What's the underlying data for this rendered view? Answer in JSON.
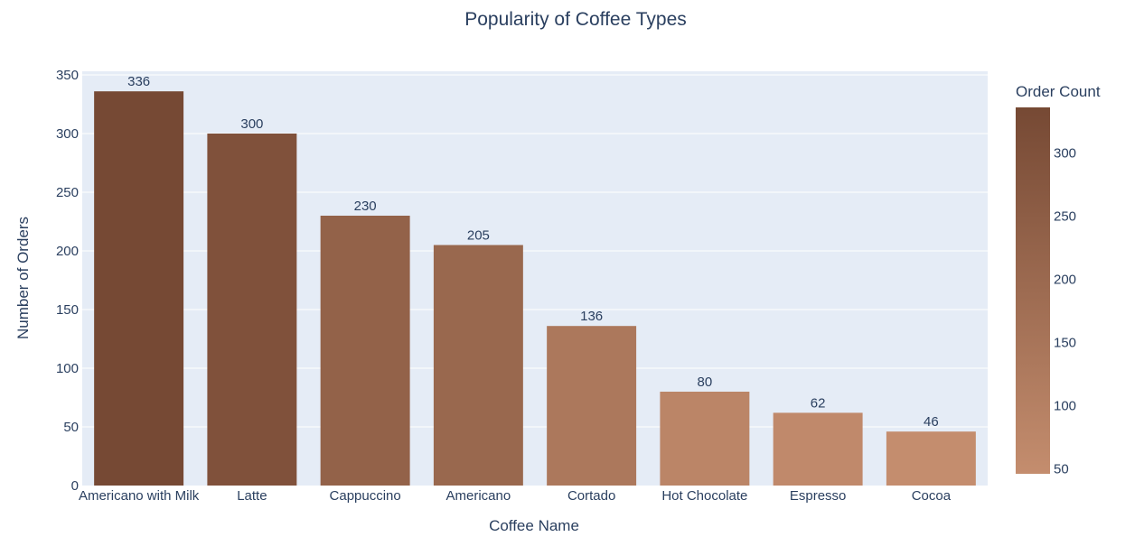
{
  "chart_data": {
    "type": "bar",
    "title": "Popularity of Coffee Types",
    "xlabel": "Coffee Name",
    "ylabel": "Number of Orders",
    "categories": [
      "Americano with Milk",
      "Latte",
      "Cappuccino",
      "Americano",
      "Cortado",
      "Hot Chocolate",
      "Espresso",
      "Cocoa"
    ],
    "values": [
      336,
      300,
      230,
      205,
      136,
      80,
      62,
      46
    ],
    "data_labels": [
      "336",
      "300",
      "230",
      "205",
      "136",
      "80",
      "62",
      "46"
    ],
    "ylim": [
      0,
      350
    ],
    "yticks": [
      0,
      50,
      100,
      150,
      200,
      250,
      300,
      350
    ],
    "ytick_labels": [
      "0",
      "50",
      "100",
      "150",
      "200",
      "250",
      "300",
      "350"
    ],
    "grid": true,
    "colorbar": {
      "title": "Order Count",
      "range": [
        46,
        336
      ],
      "ticks": [
        50,
        100,
        150,
        200,
        250,
        300
      ],
      "tick_labels": [
        "50",
        "100",
        "150",
        "200",
        "250",
        "300"
      ],
      "color_low": "#c48d6e",
      "color_high": "#764934"
    },
    "colors": {
      "plot_bg": "#e5ecf6",
      "grid": "#ffffff",
      "text": "#2a3f5f"
    }
  }
}
